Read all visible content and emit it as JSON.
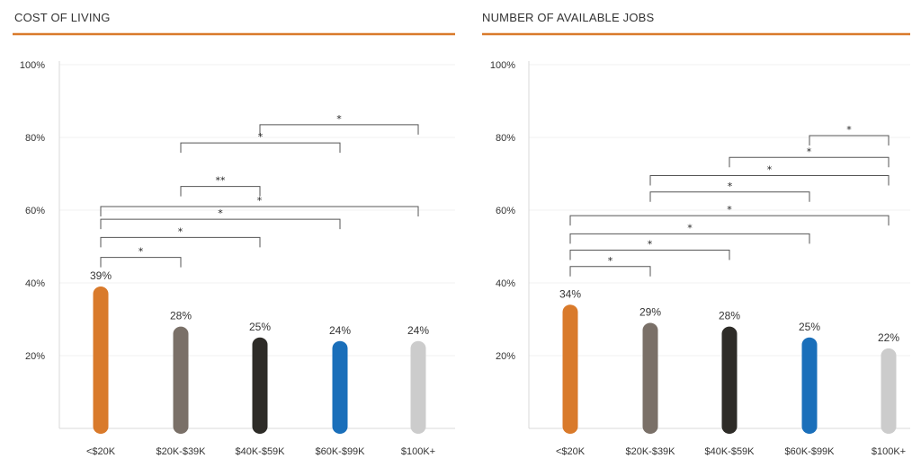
{
  "chart_data": [
    {
      "type": "bar",
      "title": "COST OF LIVING",
      "categories": [
        "<$20K",
        "$20K-$39K",
        "$40K-$59K",
        "$60K-$99K",
        "$100K+"
      ],
      "values": [
        39,
        28,
        25,
        24,
        24
      ],
      "value_labels": [
        "39%",
        "28%",
        "25%",
        "24%",
        "24%"
      ],
      "yticks": [
        "100%",
        "80%",
        "60%",
        "40%",
        "20%"
      ],
      "ytick_values": [
        100,
        80,
        60,
        40,
        20
      ],
      "ylim": [
        0,
        100
      ],
      "grid": true,
      "xlabel": "",
      "ylabel": "",
      "colors": [
        "#d97a2b",
        "#7a7068",
        "#2e2c28",
        "#1a6fba",
        "#cccccc"
      ],
      "significance": [
        {
          "from": 2,
          "to": 4,
          "level": 83.5,
          "mark": "*"
        },
        {
          "from": 1,
          "to": 3,
          "level": 78.5,
          "mark": "*"
        },
        {
          "from": 1,
          "to": 2,
          "level": 66.5,
          "mark": "**"
        },
        {
          "from": 0,
          "to": 4,
          "level": 61,
          "mark": "*"
        },
        {
          "from": 0,
          "to": 3,
          "level": 57.5,
          "mark": "*"
        },
        {
          "from": 0,
          "to": 2,
          "level": 52.5,
          "mark": "*"
        },
        {
          "from": 0,
          "to": 1,
          "level": 47,
          "mark": "*"
        }
      ]
    },
    {
      "type": "bar",
      "title": "NUMBER OF AVAILABLE JOBS",
      "categories": [
        "<$20K",
        "$20K-$39K",
        "$40K-$59K",
        "$60K-$99K",
        "$100K+"
      ],
      "values": [
        34,
        29,
        28,
        25,
        22
      ],
      "value_labels": [
        "34%",
        "29%",
        "28%",
        "25%",
        "22%"
      ],
      "yticks": [
        "100%",
        "80%",
        "60%",
        "40%",
        "20%"
      ],
      "ytick_values": [
        100,
        80,
        60,
        40,
        20
      ],
      "ylim": [
        0,
        100
      ],
      "grid": true,
      "xlabel": "",
      "ylabel": "",
      "colors": [
        "#d97a2b",
        "#7a7068",
        "#2e2c28",
        "#1a6fba",
        "#cccccc"
      ],
      "significance": [
        {
          "from": 3,
          "to": 4,
          "level": 80.5,
          "mark": "*"
        },
        {
          "from": 2,
          "to": 4,
          "level": 74.5,
          "mark": "*"
        },
        {
          "from": 1,
          "to": 4,
          "level": 69.5,
          "mark": "*"
        },
        {
          "from": 1,
          "to": 3,
          "level": 65,
          "mark": "*"
        },
        {
          "from": 0,
          "to": 4,
          "level": 58.5,
          "mark": "*"
        },
        {
          "from": 0,
          "to": 3,
          "level": 53.5,
          "mark": "*"
        },
        {
          "from": 0,
          "to": 2,
          "level": 49,
          "mark": "*"
        },
        {
          "from": 0,
          "to": 1,
          "level": 44.5,
          "mark": "*"
        }
      ]
    }
  ],
  "accent_color": "#d97a2b"
}
